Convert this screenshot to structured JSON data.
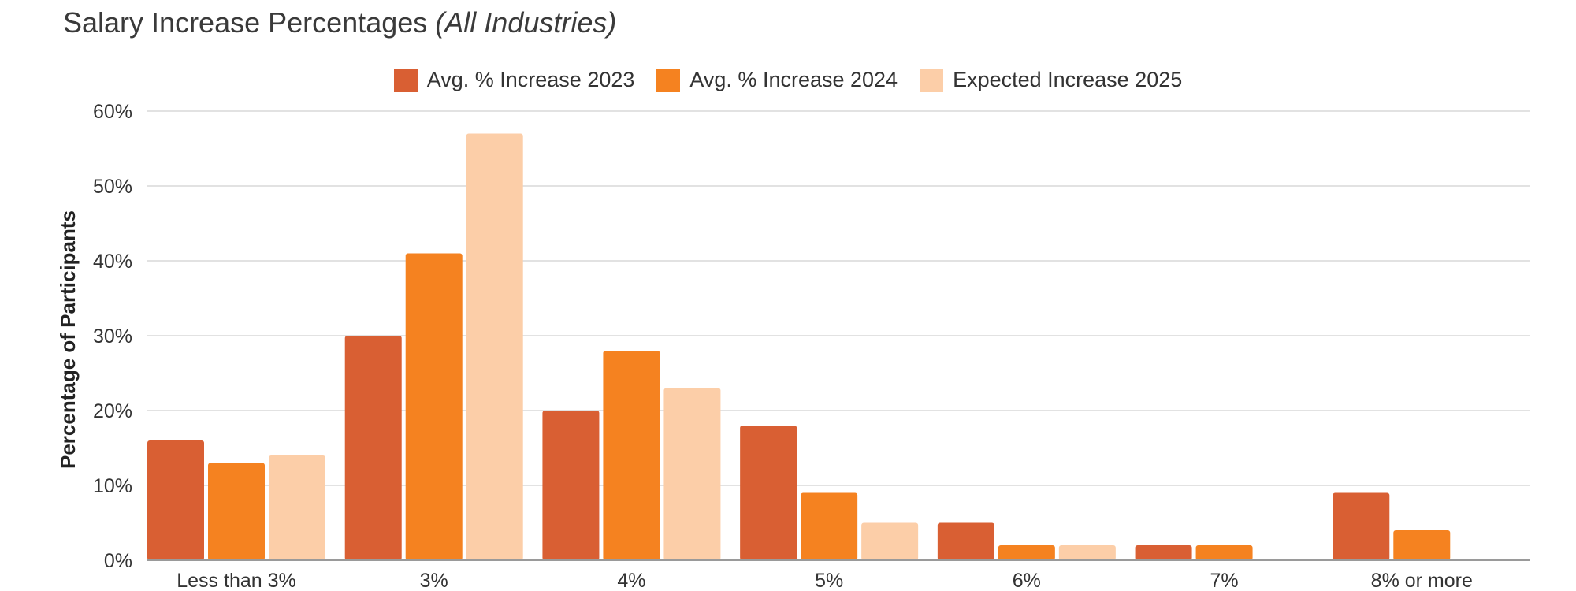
{
  "chart_data": {
    "type": "bar",
    "title": "Salary Increase Percentages",
    "subtitle": "(All Industries)",
    "xlabel": "",
    "ylabel": "Percentage of Participants",
    "ylim": [
      0,
      60
    ],
    "yticks": [
      "0%",
      "10%",
      "20%",
      "30%",
      "40%",
      "50%",
      "60%"
    ],
    "grid": true,
    "legend_position": "top-center",
    "categories": [
      "Less than 3%",
      "3%",
      "4%",
      "5%",
      "6%",
      "7%",
      "8% or more"
    ],
    "series": [
      {
        "name": "Avg. % Increase 2023",
        "color": "#D95F33",
        "values": [
          16,
          30,
          20,
          18,
          5,
          2,
          9
        ]
      },
      {
        "name": "Avg. % Increase 2024",
        "color": "#F58220",
        "values": [
          13,
          41,
          28,
          9,
          2,
          2,
          4
        ]
      },
      {
        "name": "Expected Increase 2025",
        "color": "#FCCEA8",
        "values": [
          14,
          57,
          23,
          5,
          2,
          0,
          0
        ]
      }
    ]
  }
}
